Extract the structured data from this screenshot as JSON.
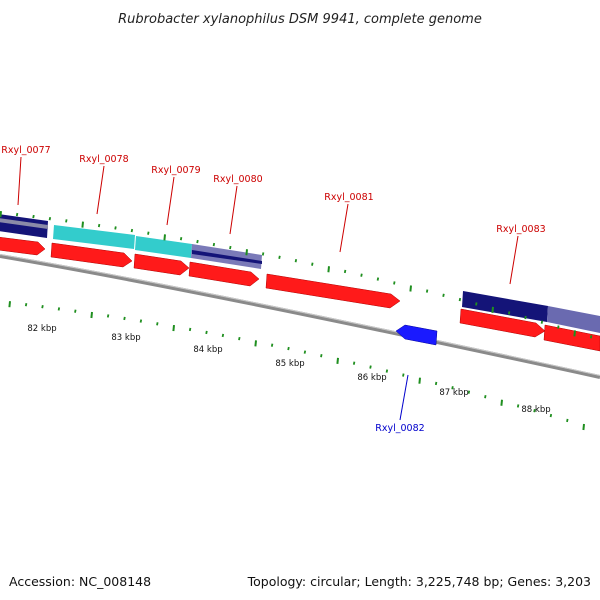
{
  "title": "Rubrobacter xylanophilus DSM 9941, complete genome",
  "footer": {
    "accession": "Accession: NC_008148",
    "summary": "Topology: circular; Length: 3,225,748 bp; Genes: 3,203"
  },
  "colors": {
    "backbone": "#7f7f7f",
    "tick": "#1f8f1f",
    "forward_gene": "#ff1a1a",
    "reverse_gene": "#1a1aff",
    "label_forward": "#cc0000",
    "label_reverse": "#0000cc",
    "cog_navy": "#141478",
    "cog_cyan": "#33cccc",
    "cog_slate": "#6a6ab0",
    "cog_grey": "#a0a0b0"
  },
  "tick_labels": [
    "82 kbp",
    "83 kbp",
    "84 kbp",
    "85 kbp",
    "86 kbp",
    "87 kbp",
    "88 kbp"
  ],
  "gene_labels": [
    {
      "text": "Rxyl_0077",
      "strand": "forward"
    },
    {
      "text": "Rxyl_0078",
      "strand": "forward"
    },
    {
      "text": "Rxyl_0079",
      "strand": "forward"
    },
    {
      "text": "Rxyl_0080",
      "strand": "forward"
    },
    {
      "text": "Rxyl_0081",
      "strand": "forward"
    },
    {
      "text": "Rxyl_0083",
      "strand": "forward"
    },
    {
      "text": "Rxyl_0082",
      "strand": "reverse"
    }
  ]
}
